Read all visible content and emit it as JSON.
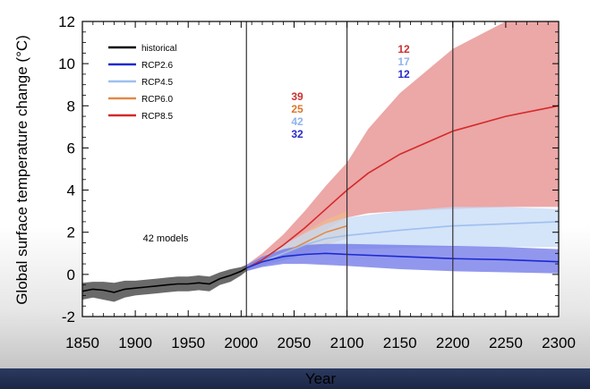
{
  "chart_data": {
    "type": "line",
    "title": "",
    "xlabel": "Year",
    "ylabel": "Global surface temperature change (°C)",
    "xlim": [
      1850,
      2300
    ],
    "ylim": [
      -2,
      12
    ],
    "xticks": [
      1850,
      1900,
      1950,
      2000,
      2050,
      2100,
      2150,
      2200,
      2250,
      2300
    ],
    "yticks": [
      -2,
      0,
      2,
      4,
      6,
      8,
      10,
      12
    ],
    "vlines": [
      2005,
      2100,
      2200
    ],
    "legend": {
      "placement": "top-left",
      "entries": [
        {
          "name": "historical",
          "color": "#000000"
        },
        {
          "name": "RCP2.6",
          "color": "#1b2ad0"
        },
        {
          "name": "RCP4.5",
          "color": "#9ec0ee"
        },
        {
          "name": "RCP6.0",
          "color": "#e08a48"
        },
        {
          "name": "RCP8.5",
          "color": "#d42a2a"
        }
      ]
    },
    "annotations": {
      "models_label": "42 models",
      "counts_2100": [
        {
          "text": "39",
          "color": "#c83232"
        },
        {
          "text": "25",
          "color": "#d8782e"
        },
        {
          "text": "42",
          "color": "#8fb4ec"
        },
        {
          "text": "32",
          "color": "#2a2ac8"
        }
      ],
      "counts_2300": [
        {
          "text": "12",
          "color": "#c83232"
        },
        {
          "text": "17",
          "color": "#8fb4ec"
        },
        {
          "text": "12",
          "color": "#2a2ac8"
        }
      ]
    },
    "series": [
      {
        "name": "historical",
        "color": "#000000",
        "band_color": "#5a5a5a",
        "x": [
          1850,
          1860,
          1870,
          1880,
          1890,
          1900,
          1910,
          1920,
          1930,
          1940,
          1950,
          1960,
          1970,
          1980,
          1990,
          2000,
          2005
        ],
        "mean": [
          -0.8,
          -0.7,
          -0.75,
          -0.85,
          -0.7,
          -0.65,
          -0.6,
          -0.55,
          -0.5,
          -0.45,
          -0.45,
          -0.4,
          -0.45,
          -0.2,
          -0.05,
          0.15,
          0.3
        ],
        "low": [
          -1.2,
          -1.1,
          -1.2,
          -1.3,
          -1.1,
          -1.0,
          -0.95,
          -0.9,
          -0.85,
          -0.8,
          -0.8,
          -0.75,
          -0.8,
          -0.5,
          -0.35,
          -0.05,
          0.15
        ],
        "high": [
          -0.4,
          -0.35,
          -0.35,
          -0.4,
          -0.3,
          -0.3,
          -0.25,
          -0.2,
          -0.15,
          -0.1,
          -0.1,
          -0.05,
          -0.1,
          0.1,
          0.25,
          0.35,
          0.45
        ]
      },
      {
        "name": "RCP8.5",
        "color": "#d42a2a",
        "band_color": "#e68a8a",
        "x": [
          2005,
          2020,
          2040,
          2060,
          2080,
          2100,
          2120,
          2150,
          2200,
          2250,
          2300
        ],
        "mean": [
          0.3,
          0.7,
          1.4,
          2.2,
          3.1,
          4.0,
          4.8,
          5.7,
          6.8,
          7.5,
          8.0
        ],
        "low": [
          0.15,
          0.45,
          0.9,
          1.5,
          2.1,
          2.7,
          2.9,
          3.0,
          3.1,
          3.2,
          3.2
        ],
        "high": [
          0.45,
          1.0,
          1.9,
          3.0,
          4.2,
          5.3,
          6.9,
          8.6,
          10.7,
          12.0,
          12.0
        ]
      },
      {
        "name": "RCP6.0",
        "color": "#e08a48",
        "band_color": "#f0b98c",
        "x": [
          2005,
          2020,
          2040,
          2060,
          2080,
          2100
        ],
        "mean": [
          0.3,
          0.6,
          1.0,
          1.5,
          2.0,
          2.3
        ],
        "low": [
          0.15,
          0.4,
          0.7,
          1.0,
          1.4,
          1.7
        ],
        "high": [
          0.45,
          0.85,
          1.3,
          2.0,
          2.6,
          3.0
        ]
      },
      {
        "name": "RCP4.5",
        "color": "#9ec0ee",
        "band_color": "#c5dbf7",
        "x": [
          2005,
          2020,
          2040,
          2060,
          2080,
          2100,
          2150,
          2200,
          2250,
          2300
        ],
        "mean": [
          0.3,
          0.6,
          1.0,
          1.4,
          1.7,
          1.85,
          2.1,
          2.3,
          2.4,
          2.5
        ],
        "low": [
          0.15,
          0.4,
          0.65,
          0.95,
          1.1,
          1.2,
          1.25,
          1.3,
          1.3,
          1.3
        ],
        "high": [
          0.45,
          0.85,
          1.4,
          1.95,
          2.4,
          2.7,
          3.0,
          3.2,
          3.2,
          3.1
        ]
      },
      {
        "name": "RCP2.6",
        "color": "#1b2ad0",
        "band_color": "#6e74e8",
        "x": [
          2005,
          2020,
          2040,
          2060,
          2080,
          2100,
          2150,
          2200,
          2250,
          2300
        ],
        "mean": [
          0.3,
          0.6,
          0.85,
          0.95,
          1.0,
          0.95,
          0.85,
          0.75,
          0.7,
          0.6
        ],
        "low": [
          0.15,
          0.35,
          0.5,
          0.5,
          0.45,
          0.4,
          0.25,
          0.15,
          0.1,
          0.05
        ],
        "high": [
          0.45,
          0.85,
          1.2,
          1.4,
          1.45,
          1.45,
          1.4,
          1.35,
          1.3,
          1.2
        ]
      }
    ]
  }
}
